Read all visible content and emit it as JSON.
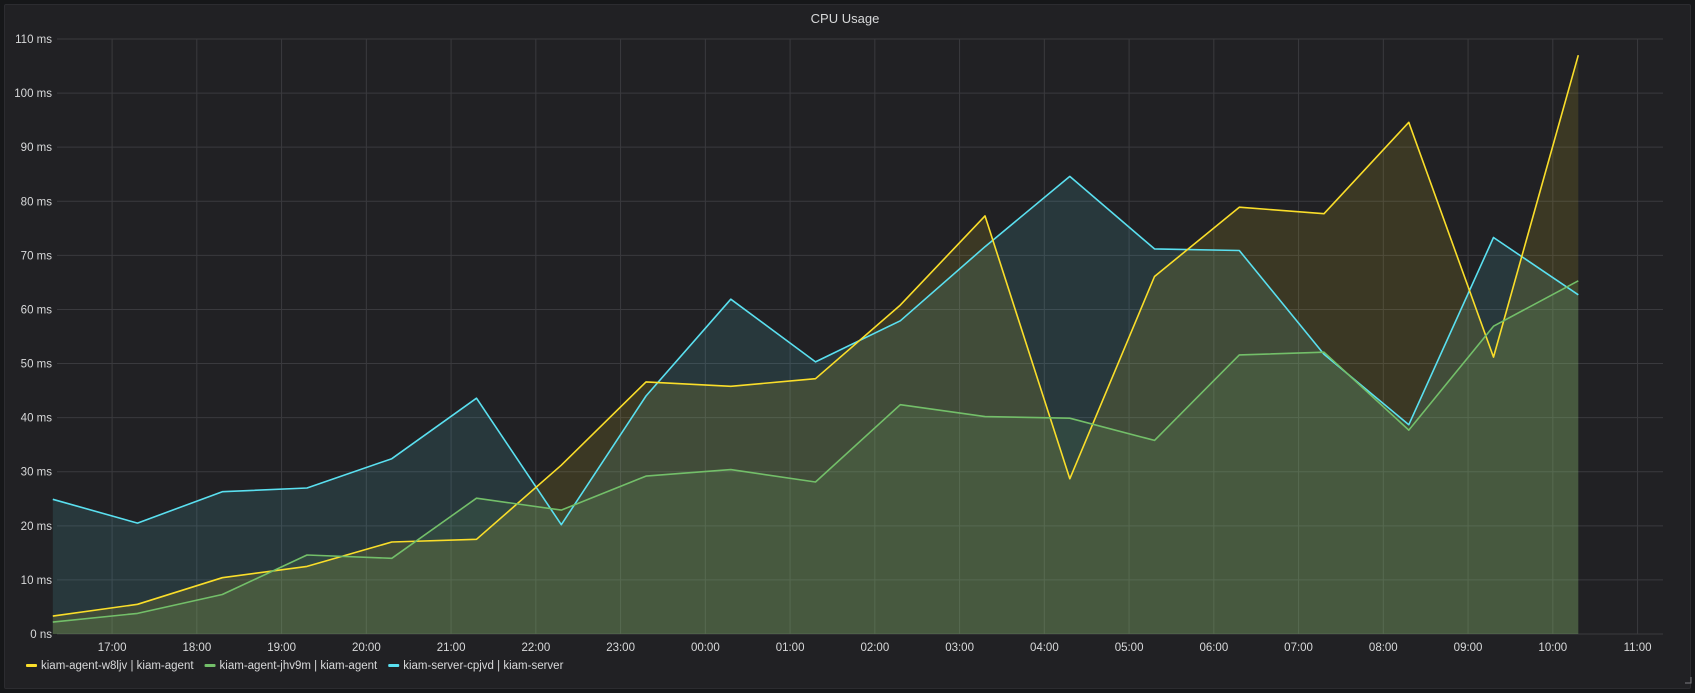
{
  "panel": {
    "title": "CPU Usage"
  },
  "chart_data": {
    "type": "area",
    "title": "CPU Usage",
    "xlabel": "",
    "ylabel": "",
    "ylim": [
      0,
      110
    ],
    "xlim": [
      16.35,
      11.3
    ],
    "y_ticks": [
      0,
      10,
      20,
      30,
      40,
      50,
      60,
      70,
      80,
      90,
      100,
      110
    ],
    "y_tick_labels": [
      "0 ns",
      "10 ms",
      "20 ms",
      "30 ms",
      "40 ms",
      "50 ms",
      "60 ms",
      "70 ms",
      "80 ms",
      "90 ms",
      "100 ms",
      "110 ms"
    ],
    "x_tick_labels": [
      "17:00",
      "18:00",
      "19:00",
      "20:00",
      "21:00",
      "22:00",
      "23:00",
      "00:00",
      "01:00",
      "02:00",
      "03:00",
      "04:00",
      "05:00",
      "06:00",
      "07:00",
      "08:00",
      "09:00",
      "10:00",
      "11:00"
    ],
    "x_tick_hours": [
      17,
      18,
      19,
      20,
      21,
      22,
      23,
      24,
      25,
      26,
      27,
      28,
      29,
      30,
      31,
      32,
      33,
      34,
      35
    ],
    "x_hours": [
      16.3,
      17.3,
      18.3,
      19.3,
      20.3,
      21.3,
      22.3,
      23.3,
      24.3,
      25.3,
      26.3,
      27.3,
      28.3,
      29.3,
      30.3,
      31.3,
      32.3,
      33.3,
      34.3
    ],
    "grid": true,
    "legend_position": "bottom-left",
    "series": [
      {
        "name": "kiam-agent-w8ljv | kiam-agent",
        "color": "#FADE2A",
        "values": [
          3.3,
          5.5,
          10.4,
          12.5,
          17.0,
          17.5,
          31.2,
          46.6,
          45.8,
          47.2,
          60.8,
          77.3,
          28.7,
          66.1,
          78.9,
          77.7,
          94.6,
          51.2,
          107.0
        ]
      },
      {
        "name": "kiam-agent-jhv9m | kiam-agent",
        "color": "#73BF69",
        "values": [
          2.2,
          3.8,
          7.3,
          14.6,
          14.0,
          25.1,
          22.9,
          29.2,
          30.4,
          28.1,
          42.4,
          40.2,
          39.9,
          35.8,
          51.6,
          52.1,
          37.7,
          56.9,
          65.3
        ]
      },
      {
        "name": "kiam-server-cpjvd | kiam-server",
        "color": "#5AE0F0",
        "values": [
          24.9,
          20.5,
          26.3,
          27.0,
          32.4,
          43.6,
          20.2,
          44.0,
          61.9,
          50.3,
          57.9,
          71.6,
          84.6,
          71.2,
          70.9,
          51.7,
          38.7,
          73.3,
          62.7
        ]
      }
    ]
  }
}
